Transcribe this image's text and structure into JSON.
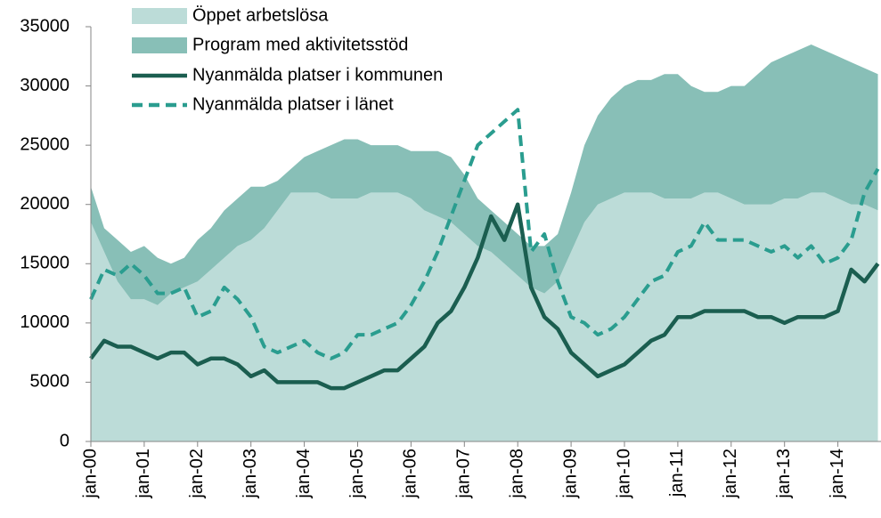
{
  "chart_data": {
    "type": "stacked-area-line",
    "categories": [
      "jan-00",
      null,
      null,
      null,
      "jan-01",
      null,
      null,
      null,
      "jan-02",
      null,
      null,
      null,
      "jan-03",
      null,
      null,
      null,
      "jan-04",
      null,
      null,
      null,
      "jan-05",
      null,
      null,
      null,
      "jan-06",
      null,
      null,
      null,
      "jan-07",
      null,
      null,
      null,
      "jan-08",
      null,
      null,
      null,
      "jan-09",
      null,
      null,
      null,
      "jan-10",
      null,
      null,
      null,
      "jan-11",
      null,
      null,
      null,
      "jan-12",
      null,
      null,
      null,
      "jan-13",
      null,
      null,
      null,
      "jan-14",
      null,
      null,
      null
    ],
    "ylim": [
      0,
      35000
    ],
    "yticks": [
      0,
      5000,
      10000,
      15000,
      20000,
      25000,
      30000,
      35000
    ],
    "grid": false,
    "legend": "top-left",
    "series": [
      {
        "name": "Öppet arbetslösa",
        "kind": "area",
        "color": "#bcdcd8",
        "values": [
          18500,
          16000,
          13500,
          12000,
          12000,
          11500,
          12500,
          13000,
          13500,
          14500,
          15500,
          16500,
          17000,
          18000,
          19500,
          21000,
          21000,
          21000,
          20500,
          20500,
          20500,
          21000,
          21000,
          21000,
          20500,
          19500,
          19000,
          18500,
          17500,
          16500,
          16000,
          15000,
          14000,
          13000,
          12500,
          13500,
          16000,
          18500,
          20000,
          20500,
          21000,
          21000,
          21000,
          20500,
          20500,
          20500,
          21000,
          21000,
          20500,
          20000,
          20000,
          20000,
          20500,
          20500,
          21000,
          21000,
          20500,
          20000,
          20000,
          19500
        ]
      },
      {
        "name": "Program med aktivitetsstöd",
        "kind": "area",
        "color": "#88bfb7",
        "values": [
          3000,
          2000,
          3500,
          4000,
          4500,
          4000,
          2500,
          2500,
          3500,
          3500,
          4000,
          4000,
          4500,
          3500,
          2500,
          2000,
          3000,
          3500,
          4500,
          5000,
          5000,
          4000,
          4000,
          4000,
          4000,
          5000,
          5500,
          5500,
          5000,
          4000,
          3500,
          3500,
          3500,
          3500,
          4000,
          4000,
          5000,
          6500,
          7500,
          8500,
          9000,
          9500,
          9500,
          10500,
          10500,
          9500,
          8500,
          8500,
          9500,
          10000,
          11000,
          12000,
          12000,
          12500,
          12500,
          12000,
          12000,
          12000,
          11500,
          11500
        ]
      },
      {
        "name": "Nyanmälda platser i kommunen",
        "kind": "line",
        "dash": false,
        "color": "#1b5e50",
        "values": [
          7000,
          8500,
          8000,
          8000,
          7500,
          7000,
          7500,
          7500,
          6500,
          7000,
          7000,
          6500,
          5500,
          6000,
          5000,
          5000,
          5000,
          5000,
          4500,
          4500,
          5000,
          5500,
          6000,
          6000,
          7000,
          8000,
          10000,
          11000,
          13000,
          15500,
          19000,
          17000,
          20000,
          13000,
          10500,
          9500,
          7500,
          6500,
          5500,
          6000,
          6500,
          7500,
          8500,
          9000,
          10500,
          10500,
          11000,
          11000,
          11000,
          11000,
          10500,
          10500,
          10000,
          10500,
          10500,
          10500,
          11000,
          14500,
          13500,
          15000
        ]
      },
      {
        "name": "Nyanmälda platser i länet",
        "kind": "line",
        "dash": true,
        "color": "#2a9d8f",
        "values": [
          12000,
          14500,
          14000,
          15000,
          14000,
          12500,
          12500,
          13000,
          10500,
          11000,
          13000,
          12000,
          10500,
          8000,
          7500,
          8000,
          8500,
          7500,
          7000,
          7500,
          9000,
          9000,
          9500,
          10000,
          11500,
          13500,
          16000,
          19000,
          22000,
          25000,
          26000,
          27000,
          28000,
          16000,
          17500,
          13500,
          10500,
          10000,
          9000,
          9500,
          10500,
          12000,
          13500,
          14000,
          16000,
          16500,
          18500,
          17000,
          17000,
          17000,
          16500,
          16000,
          16500,
          15500,
          16500,
          15000,
          15500,
          17000,
          21000,
          23000
        ]
      }
    ]
  }
}
